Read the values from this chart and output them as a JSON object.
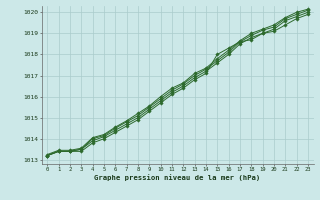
{
  "title": "Graphe pression niveau de la mer (hPa)",
  "bg_color": "#cce8e8",
  "grid_color": "#aacccc",
  "line_color": "#2d6a2d",
  "xlim": [
    -0.5,
    23.5
  ],
  "ylim": [
    1012.8,
    1020.3
  ],
  "xticks": [
    0,
    1,
    2,
    3,
    4,
    5,
    6,
    7,
    8,
    9,
    10,
    11,
    12,
    13,
    14,
    15,
    16,
    17,
    18,
    19,
    20,
    21,
    22,
    23
  ],
  "yticks": [
    1013,
    1014,
    1015,
    1016,
    1017,
    1018,
    1019,
    1020
  ],
  "series": [
    [
      1013.2,
      1013.4,
      1013.4,
      1013.5,
      1013.9,
      1014.1,
      1014.4,
      1014.7,
      1015.0,
      1015.4,
      1015.8,
      1016.2,
      1016.5,
      1016.9,
      1017.2,
      1017.6,
      1018.0,
      1018.5,
      1018.8,
      1019.0,
      1019.2,
      1019.6,
      1019.8,
      1020.0
    ],
    [
      1013.2,
      1013.4,
      1013.4,
      1013.4,
      1013.8,
      1014.0,
      1014.3,
      1014.6,
      1014.9,
      1015.3,
      1015.7,
      1016.1,
      1016.4,
      1016.8,
      1017.1,
      1018.0,
      1018.3,
      1018.6,
      1018.7,
      1019.0,
      1019.1,
      1019.4,
      1019.7,
      1019.9
    ],
    [
      1013.2,
      1013.4,
      1013.4,
      1013.5,
      1014.0,
      1014.15,
      1014.5,
      1014.8,
      1015.1,
      1015.5,
      1015.9,
      1016.3,
      1016.6,
      1017.0,
      1017.3,
      1017.7,
      1018.1,
      1018.6,
      1018.9,
      1019.15,
      1019.3,
      1019.7,
      1019.9,
      1020.1
    ],
    [
      1013.25,
      1013.45,
      1013.45,
      1013.55,
      1014.05,
      1014.2,
      1014.55,
      1014.85,
      1015.2,
      1015.55,
      1016.0,
      1016.4,
      1016.65,
      1017.1,
      1017.35,
      1017.8,
      1018.2,
      1018.65,
      1019.0,
      1019.2,
      1019.4,
      1019.75,
      1020.0,
      1020.15
    ]
  ]
}
